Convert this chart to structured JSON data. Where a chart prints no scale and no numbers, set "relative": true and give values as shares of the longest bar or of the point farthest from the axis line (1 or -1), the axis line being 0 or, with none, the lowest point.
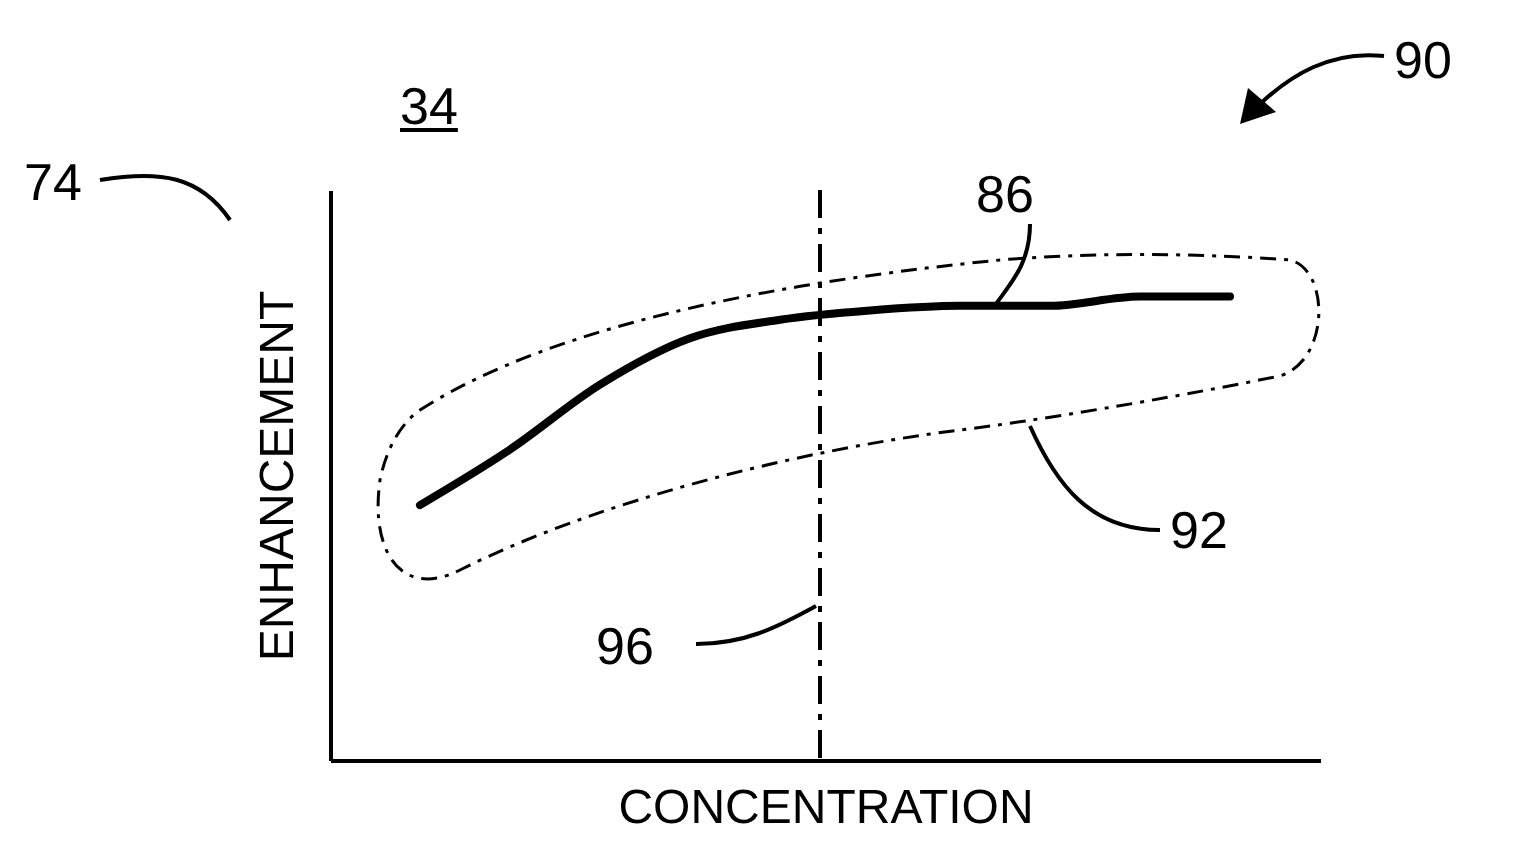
{
  "chart_data": {
    "type": "line",
    "xlabel": "CONCENTRATION",
    "ylabel": "ENHANCEMENT",
    "relative": true,
    "categories": [
      null,
      null,
      null,
      null,
      null,
      null,
      null,
      null,
      null,
      null
    ],
    "series": [
      {
        "color": "#000000",
        "values": [
          0.55,
          0.67,
          0.81,
          0.91,
          0.95,
          0.97,
          0.98,
          0.98,
          1,
          1
        ]
      }
    ],
    "annotations": [
      "34",
      "74",
      "90",
      "86",
      "92",
      "96"
    ],
    "marker": "none",
    "line_style": "solid"
  }
}
